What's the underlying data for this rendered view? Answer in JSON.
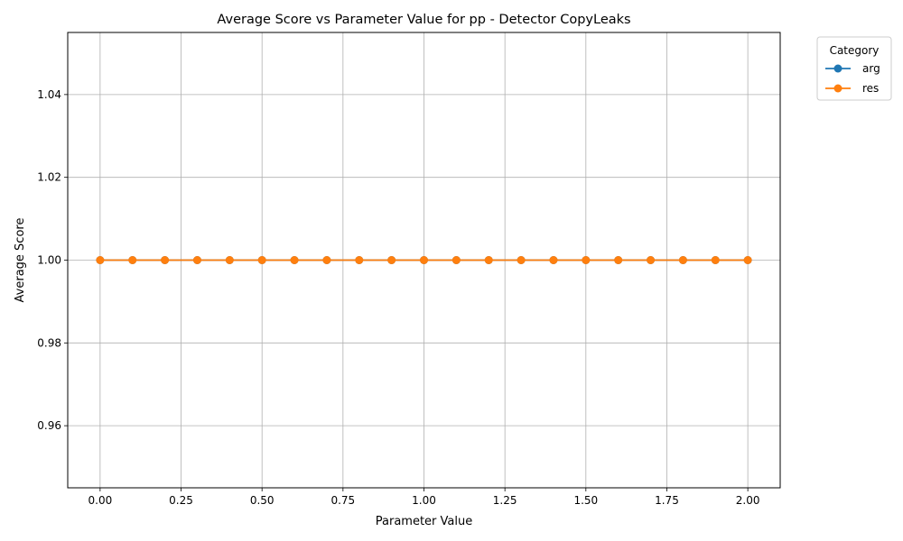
{
  "chart_data": {
    "type": "line",
    "title": "Average Score vs Parameter Value for pp - Detector CopyLeaks",
    "xlabel": "Parameter Value",
    "ylabel": "Average Score",
    "xlim": [
      -0.1,
      2.1
    ],
    "ylim": [
      0.945,
      1.055
    ],
    "x_ticks": [
      "0.00",
      "0.25",
      "0.50",
      "0.75",
      "1.00",
      "1.25",
      "1.50",
      "1.75",
      "2.00"
    ],
    "x_tick_values": [
      0,
      0.25,
      0.5,
      0.75,
      1.0,
      1.25,
      1.5,
      1.75,
      2.0
    ],
    "y_ticks": [
      "0.96",
      "0.98",
      "1.00",
      "1.02",
      "1.04"
    ],
    "y_tick_values": [
      0.96,
      0.98,
      1.0,
      1.02,
      1.04
    ],
    "grid": true,
    "legend": {
      "title": "Category",
      "placement": "outside top-right"
    },
    "x": [
      0,
      0.1,
      0.2,
      0.3,
      0.4,
      0.5,
      0.6,
      0.7,
      0.8,
      0.9,
      1.0,
      1.1,
      1.2,
      1.3,
      1.4,
      1.5,
      1.6,
      1.7,
      1.8,
      1.9,
      2.0
    ],
    "series": [
      {
        "name": "arg",
        "color": "#1f77b4",
        "values": [
          1,
          1,
          1,
          1,
          1,
          1,
          1,
          1,
          1,
          1,
          1,
          1,
          1,
          1,
          1,
          1,
          1,
          1,
          1,
          1,
          1
        ]
      },
      {
        "name": "res",
        "color": "#ff7f0e",
        "values": [
          1,
          1,
          1,
          1,
          1,
          1,
          1,
          1,
          1,
          1,
          1,
          1,
          1,
          1,
          1,
          1,
          1,
          1,
          1,
          1,
          1
        ]
      }
    ]
  }
}
